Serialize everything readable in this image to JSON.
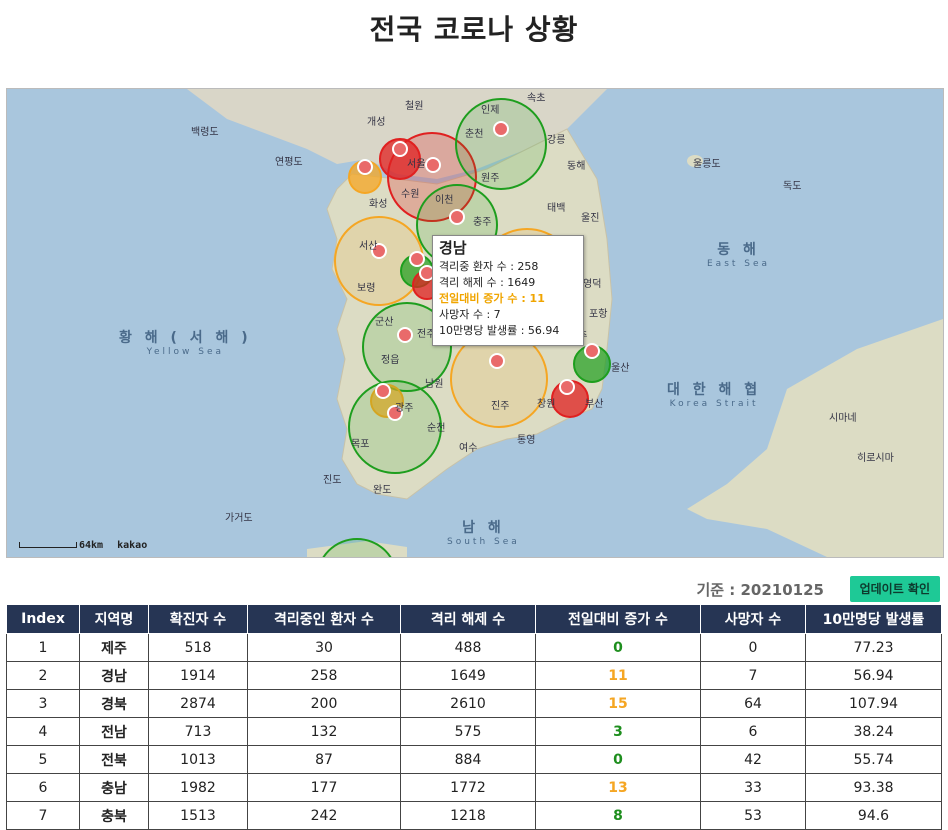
{
  "page": {
    "title": "전국 코로나 상황"
  },
  "map": {
    "scale_label": "64km",
    "attribution": "kakao",
    "seas": [
      {
        "k": "황 해 ( 서 해 )",
        "e": "Yellow Sea"
      },
      {
        "k": "동 해",
        "e": "East Sea"
      },
      {
        "k": "대 한 해 협",
        "e": "Korea Strait"
      },
      {
        "k": "남 해",
        "e": "South Sea"
      }
    ],
    "places": [
      "개성",
      "철원",
      "인제",
      "속초",
      "춘천",
      "강릉",
      "동해",
      "울릉도",
      "독도",
      "서울",
      "원주",
      "태백",
      "이천",
      "충주",
      "서산",
      "보령",
      "군산",
      "전주",
      "정읍",
      "남원",
      "광주",
      "목포",
      "순천",
      "여수",
      "진주",
      "통영",
      "창원",
      "부산",
      "울산",
      "경주",
      "포항",
      "영덕",
      "울진",
      "완도",
      "진도",
      "가거도",
      "시마네",
      "히로시마",
      "백령도",
      "연평도",
      "화성",
      "수원"
    ],
    "colors": {
      "red": "#e02020",
      "orange": "#f5a623",
      "green": "#1e9e1e"
    },
    "marker_icon": "map-pin-icon"
  },
  "tooltip": {
    "region": "경남",
    "lines": [
      {
        "label": "격리중 환자 수 : 258"
      },
      {
        "label": "격리 해제 수 : 1649"
      },
      {
        "label": "전일대비 증가 수 : 11"
      },
      {
        "label": "사망자 수 : 7"
      },
      {
        "label": "10만명당 발생률 : 56.94"
      }
    ]
  },
  "basis": {
    "text": "기준 : 20210125"
  },
  "update_button": {
    "label": "업데이트 확인"
  },
  "table": {
    "headers": [
      "Index",
      "지역명",
      "확진자 수",
      "격리중인 환자 수",
      "격리 해제 수",
      "전일대비 증가 수",
      "사망자 수",
      "10만명당 발생률"
    ],
    "rows": [
      {
        "index": "1",
        "region": "제주",
        "confirmed": "518",
        "isolated": "30",
        "released": "488",
        "increase": "0",
        "inc_color": "#1e8e1e",
        "deaths": "0",
        "rate": "77.23"
      },
      {
        "index": "2",
        "region": "경남",
        "confirmed": "1914",
        "isolated": "258",
        "released": "1649",
        "increase": "11",
        "inc_color": "#f5a623",
        "deaths": "7",
        "rate": "56.94"
      },
      {
        "index": "3",
        "region": "경북",
        "confirmed": "2874",
        "isolated": "200",
        "released": "2610",
        "increase": "15",
        "inc_color": "#f5a623",
        "deaths": "64",
        "rate": "107.94"
      },
      {
        "index": "4",
        "region": "전남",
        "confirmed": "713",
        "isolated": "132",
        "released": "575",
        "increase": "3",
        "inc_color": "#1e8e1e",
        "deaths": "6",
        "rate": "38.24"
      },
      {
        "index": "5",
        "region": "전북",
        "confirmed": "1013",
        "isolated": "87",
        "released": "884",
        "increase": "0",
        "inc_color": "#1e8e1e",
        "deaths": "42",
        "rate": "55.74"
      },
      {
        "index": "6",
        "region": "충남",
        "confirmed": "1982",
        "isolated": "177",
        "released": "1772",
        "increase": "13",
        "inc_color": "#f5a623",
        "deaths": "33",
        "rate": "93.38"
      },
      {
        "index": "7",
        "region": "충북",
        "confirmed": "1513",
        "isolated": "242",
        "released": "1218",
        "increase": "8",
        "inc_color": "#1e8e1e",
        "deaths": "53",
        "rate": "94.6"
      }
    ]
  }
}
